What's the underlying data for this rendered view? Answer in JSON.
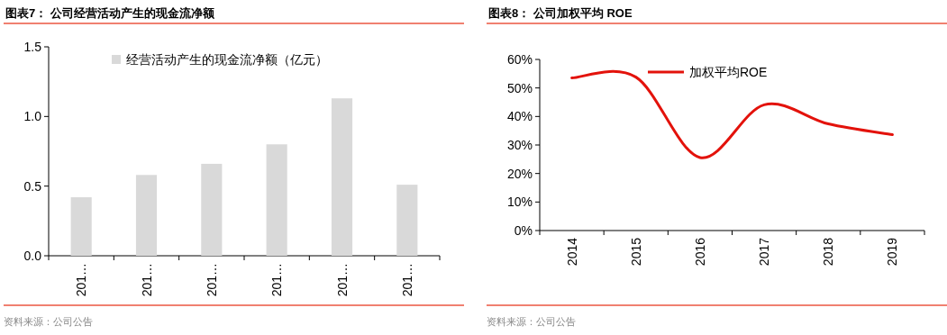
{
  "chart_data": [
    {
      "type": "bar",
      "title": "图表7：  公司经营活动产生的现金流净额",
      "categories": [
        "201…",
        "201…",
        "201…",
        "201…",
        "201…",
        "201…"
      ],
      "series": [
        {
          "name": "经营活动产生的现金流净额（亿元）",
          "color": "#d9d9d9",
          "values": [
            0.42,
            0.58,
            0.66,
            0.8,
            1.13,
            0.51
          ]
        }
      ],
      "ylim": [
        0,
        1.5
      ],
      "yticks": [
        {
          "value": 0,
          "label": "0.0"
        },
        {
          "value": 0.5,
          "label": "0.5"
        },
        {
          "value": 1,
          "label": "1.0"
        },
        {
          "value": 1.5,
          "label": "1.5"
        }
      ],
      "legend": "top",
      "annotations": [
        "资料来源：公司公告"
      ]
    },
    {
      "type": "line",
      "title": "图表8：  公司加权平均 ROE",
      "categories": [
        "2014",
        "2015",
        "2016",
        "2017",
        "2018",
        "2019"
      ],
      "series": [
        {
          "name": "加权平均ROE",
          "color": "#e3120b",
          "values": [
            53.5,
            53.8,
            25.6,
            44.1,
            37.4,
            33.6
          ]
        }
      ],
      "ylim": [
        0,
        60
      ],
      "yticks": [
        {
          "value": 0,
          "label": "0%"
        },
        {
          "value": 10,
          "label": "10%"
        },
        {
          "value": 20,
          "label": "20%"
        },
        {
          "value": 30,
          "label": "30%"
        },
        {
          "value": 40,
          "label": "40%"
        },
        {
          "value": 50,
          "label": "50%"
        },
        {
          "value": 60,
          "label": "60%"
        }
      ],
      "legend": "top",
      "annotations": [
        "资料来源：公司公告"
      ]
    }
  ]
}
